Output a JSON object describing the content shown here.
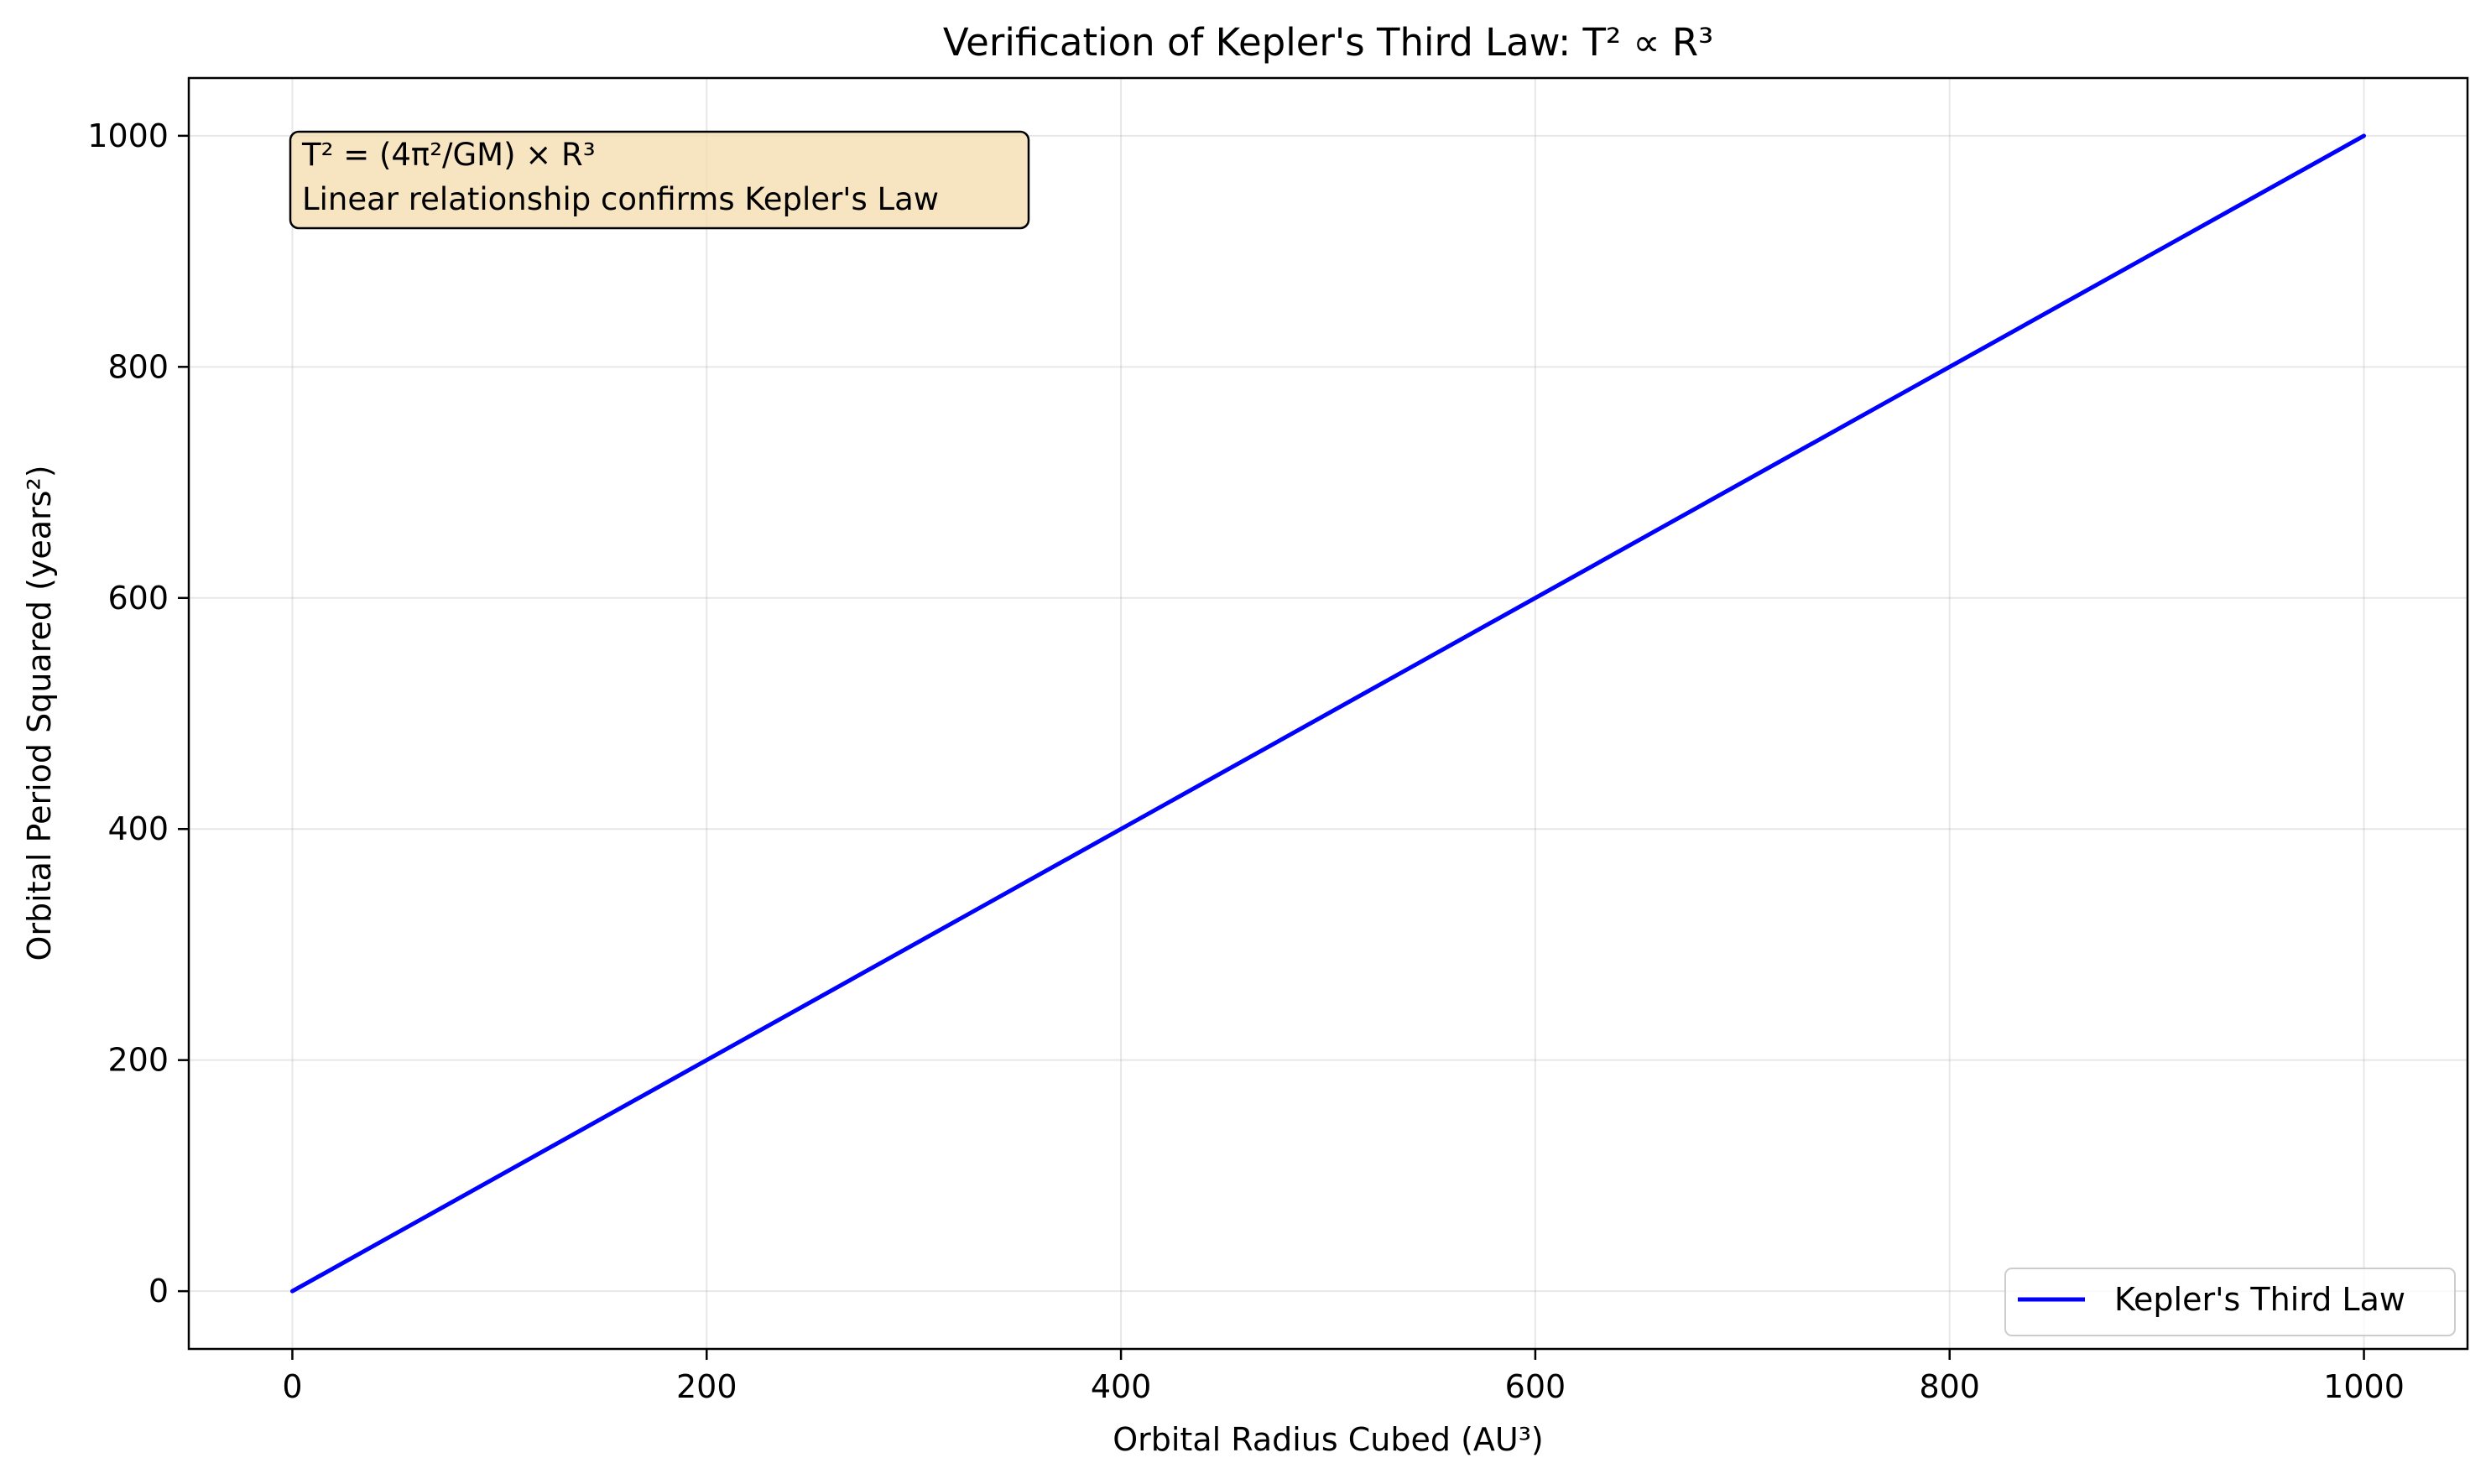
{
  "chart_data": {
    "type": "line",
    "title": "Verification of Kepler's Third Law: T² ∝ R³",
    "xlabel": "Orbital Radius Cubed (AU³)",
    "ylabel": "Orbital Period Squared (years²)",
    "xlim": [
      -50,
      1050
    ],
    "ylim": [
      -50,
      1050
    ],
    "xticks": [
      0,
      200,
      400,
      600,
      800,
      1000
    ],
    "yticks": [
      0,
      200,
      400,
      600,
      800,
      1000
    ],
    "xtick_labels": [
      "0",
      "200",
      "400",
      "600",
      "800",
      "1000"
    ],
    "ytick_labels": [
      "0",
      "200",
      "400",
      "600",
      "800",
      "1000"
    ],
    "grid": true,
    "legend_position": "lower-right",
    "series": [
      {
        "name": "Kepler's Third Law",
        "color": "#0000ff",
        "x": [
          0,
          1000
        ],
        "y": [
          0,
          1000
        ]
      }
    ],
    "annotation": {
      "lines": [
        "T² = (4π²/GM) × R³",
        "Linear relationship confirms Kepler's Law"
      ],
      "background": "#f5deb3"
    }
  }
}
